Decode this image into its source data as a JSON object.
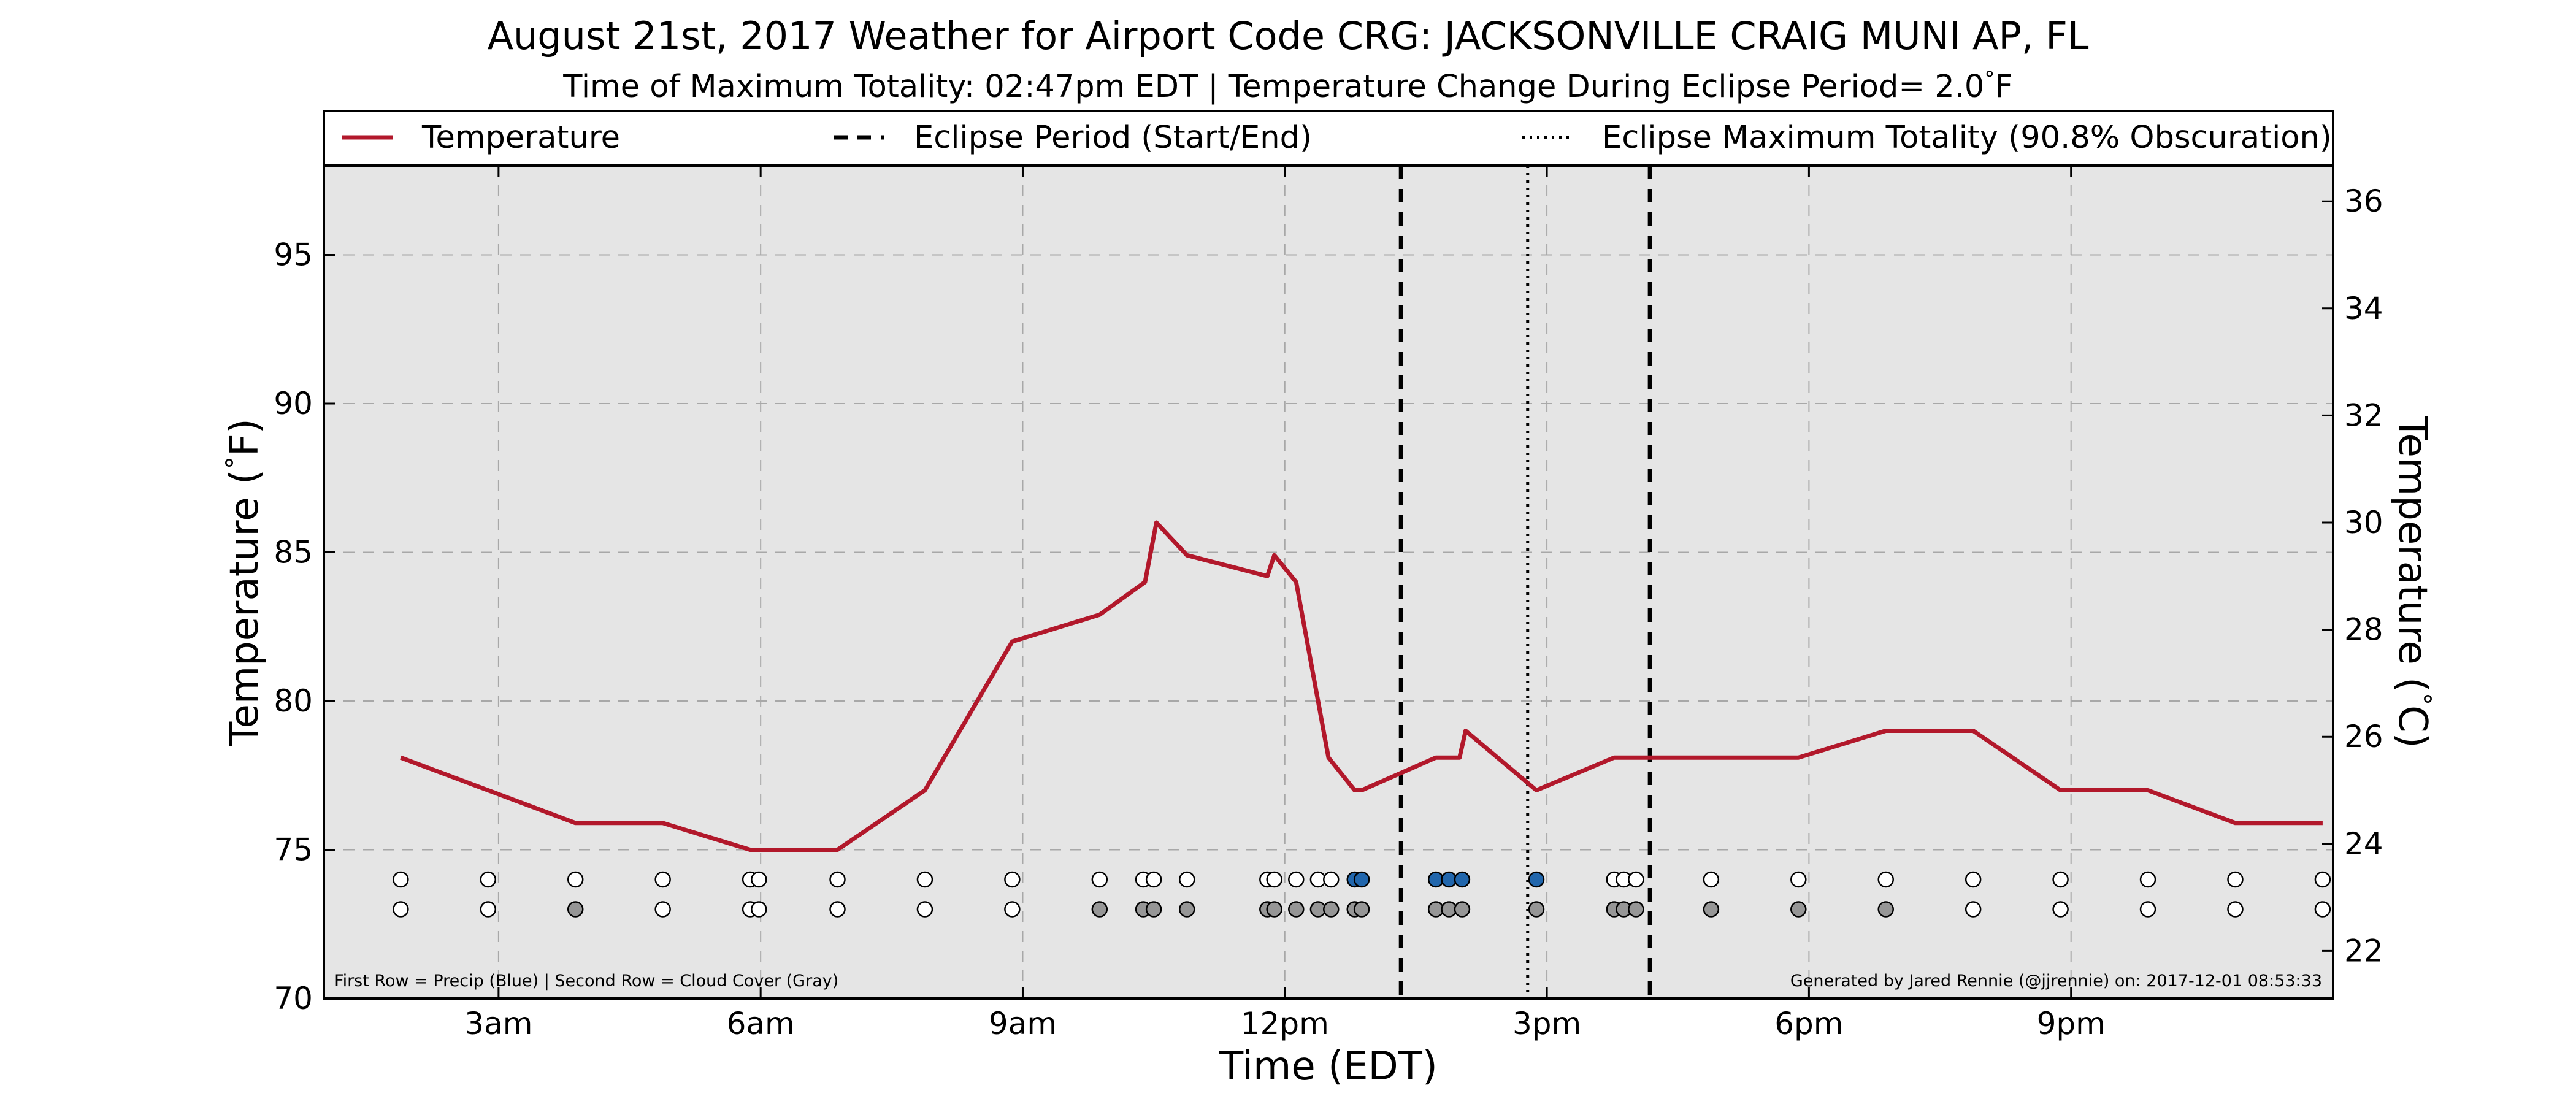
{
  "chart_data": {
    "type": "line",
    "title": "August 21st, 2017 Weather for Airport Code CRG: JACKSONVILLE CRAIG MUNI AP, FL",
    "subtitle": "Time of Maximum Totality: 02:47pm EDT | Temperature Change During Eclipse Period= 2.0$^\\circ$F",
    "subtitle_parts": {
      "before": "Time of Maximum Totality: 02:47pm EDT | Temperature Change During Eclipse Period= 2.0",
      "degree": "°",
      "unit": "F"
    },
    "xlabel": "Time (EDT)",
    "ylabel": "Temperature ($^\\circ$F)",
    "ylabel_parts": {
      "before": "Temperature (",
      "degree": "°",
      "after": "F)"
    },
    "ylabel_right": "Temperature ($^\\circ$C)",
    "ylabel_right_parts": {
      "before": "Temperature (",
      "degree": "°",
      "after": "C)"
    },
    "xlim": [
      1.0,
      24.0
    ],
    "ylim": [
      70,
      98
    ],
    "ylim_right_c": [
      21.11,
      36.67
    ],
    "x_ticks": [
      {
        "value": 3,
        "label": "3am"
      },
      {
        "value": 6,
        "label": "6am"
      },
      {
        "value": 9,
        "label": "9am"
      },
      {
        "value": 12,
        "label": "12pm"
      },
      {
        "value": 15,
        "label": "3pm"
      },
      {
        "value": 18,
        "label": "6pm"
      },
      {
        "value": 21,
        "label": "9pm"
      }
    ],
    "y_ticks_left": [
      70,
      75,
      80,
      85,
      90,
      95
    ],
    "y_ticks_right": [
      22,
      24,
      26,
      28,
      30,
      32,
      34,
      36
    ],
    "grid": true,
    "legend_position": "top",
    "legend": [
      {
        "label": "Temperature",
        "style": "solid",
        "color": "#b2182b"
      },
      {
        "label": "Eclipse Period (Start/End)",
        "style": "dashed",
        "color": "#000000"
      },
      {
        "label": "Eclipse Maximum Totality (90.8% Obscuration)",
        "style": "dotted",
        "color": "#000000"
      }
    ],
    "series": [
      {
        "name": "Temperature",
        "color": "#b2182b",
        "points": [
          [
            1.88,
            78.1
          ],
          [
            3.88,
            75.9
          ],
          [
            4.88,
            75.9
          ],
          [
            5.88,
            75.0
          ],
          [
            6.88,
            75.0
          ],
          [
            7.88,
            77.0
          ],
          [
            8.88,
            82.0
          ],
          [
            9.88,
            82.9
          ],
          [
            10.4,
            84.0
          ],
          [
            10.53,
            86.0
          ],
          [
            10.88,
            84.9
          ],
          [
            11.8,
            84.2
          ],
          [
            11.88,
            84.9
          ],
          [
            12.13,
            84.0
          ],
          [
            12.5,
            78.1
          ],
          [
            12.8,
            77.0
          ],
          [
            12.88,
            77.0
          ],
          [
            13.73,
            78.1
          ],
          [
            14.0,
            78.1
          ],
          [
            14.07,
            79.0
          ],
          [
            14.88,
            77.0
          ],
          [
            15.77,
            78.1
          ],
          [
            16.88,
            78.1
          ],
          [
            17.88,
            78.1
          ],
          [
            18.88,
            79.0
          ],
          [
            19.88,
            79.0
          ],
          [
            20.88,
            77.0
          ],
          [
            21.88,
            77.0
          ],
          [
            22.88,
            75.9
          ],
          [
            23.88,
            75.9
          ]
        ]
      }
    ],
    "eclipse_start": 13.33,
    "eclipse_end": 16.18,
    "eclipse_max": 14.78,
    "obs_rows": {
      "precip_y": 74.0,
      "cloud_y": 73.0,
      "precip": [
        {
          "x": 1.88,
          "blue": false
        },
        {
          "x": 2.88,
          "blue": false
        },
        {
          "x": 3.88,
          "blue": false
        },
        {
          "x": 4.88,
          "blue": false
        },
        {
          "x": 5.88,
          "blue": false
        },
        {
          "x": 5.98,
          "blue": false
        },
        {
          "x": 6.88,
          "blue": false
        },
        {
          "x": 7.88,
          "blue": false
        },
        {
          "x": 8.88,
          "blue": false
        },
        {
          "x": 9.88,
          "blue": false
        },
        {
          "x": 10.38,
          "blue": false
        },
        {
          "x": 10.5,
          "blue": false
        },
        {
          "x": 10.88,
          "blue": false
        },
        {
          "x": 11.8,
          "blue": false
        },
        {
          "x": 11.88,
          "blue": false
        },
        {
          "x": 12.13,
          "blue": false
        },
        {
          "x": 12.38,
          "blue": false
        },
        {
          "x": 12.53,
          "blue": false
        },
        {
          "x": 12.8,
          "blue": true
        },
        {
          "x": 12.88,
          "blue": true
        },
        {
          "x": 13.73,
          "blue": true
        },
        {
          "x": 13.88,
          "blue": true
        },
        {
          "x": 14.03,
          "blue": true
        },
        {
          "x": 14.88,
          "blue": true
        },
        {
          "x": 15.77,
          "blue": false
        },
        {
          "x": 15.88,
          "blue": false
        },
        {
          "x": 16.02,
          "blue": false
        },
        {
          "x": 16.88,
          "blue": false
        },
        {
          "x": 17.88,
          "blue": false
        },
        {
          "x": 18.88,
          "blue": false
        },
        {
          "x": 19.88,
          "blue": false
        },
        {
          "x": 20.88,
          "blue": false
        },
        {
          "x": 21.88,
          "blue": false
        },
        {
          "x": 22.88,
          "blue": false
        },
        {
          "x": 23.88,
          "blue": false
        }
      ],
      "cloud": [
        {
          "x": 1.88,
          "gray": false
        },
        {
          "x": 2.88,
          "gray": false
        },
        {
          "x": 3.88,
          "gray": true
        },
        {
          "x": 4.88,
          "gray": false
        },
        {
          "x": 5.88,
          "gray": false
        },
        {
          "x": 5.98,
          "gray": false
        },
        {
          "x": 6.88,
          "gray": false
        },
        {
          "x": 7.88,
          "gray": false
        },
        {
          "x": 8.88,
          "gray": false
        },
        {
          "x": 9.88,
          "gray": true
        },
        {
          "x": 10.38,
          "gray": true
        },
        {
          "x": 10.5,
          "gray": true
        },
        {
          "x": 10.88,
          "gray": true
        },
        {
          "x": 11.8,
          "gray": true
        },
        {
          "x": 11.88,
          "gray": true
        },
        {
          "x": 12.13,
          "gray": true
        },
        {
          "x": 12.38,
          "gray": true
        },
        {
          "x": 12.53,
          "gray": true
        },
        {
          "x": 12.8,
          "gray": true
        },
        {
          "x": 12.88,
          "gray": true
        },
        {
          "x": 13.73,
          "gray": true
        },
        {
          "x": 13.88,
          "gray": true
        },
        {
          "x": 14.03,
          "gray": true
        },
        {
          "x": 14.88,
          "gray": true
        },
        {
          "x": 15.77,
          "gray": true
        },
        {
          "x": 15.88,
          "gray": true
        },
        {
          "x": 16.02,
          "gray": true
        },
        {
          "x": 16.88,
          "gray": true
        },
        {
          "x": 17.88,
          "gray": true
        },
        {
          "x": 18.88,
          "gray": true
        },
        {
          "x": 19.88,
          "gray": false
        },
        {
          "x": 20.88,
          "gray": false
        },
        {
          "x": 21.88,
          "gray": false
        },
        {
          "x": 22.88,
          "gray": false
        },
        {
          "x": 23.88,
          "gray": false
        }
      ]
    },
    "colors": {
      "plot_background": "#e5e5e5",
      "grid": "#a8a8a8",
      "precip_blue": "#2166ac",
      "cloud_gray": "#969696",
      "marker_empty": "#ffffff"
    },
    "annotations": {
      "left": "First Row = Precip (Blue) | Second Row = Cloud Cover (Gray)",
      "right": "Generated by Jared Rennie (@jjrennie) on: 2017-12-01 08:53:33"
    }
  }
}
